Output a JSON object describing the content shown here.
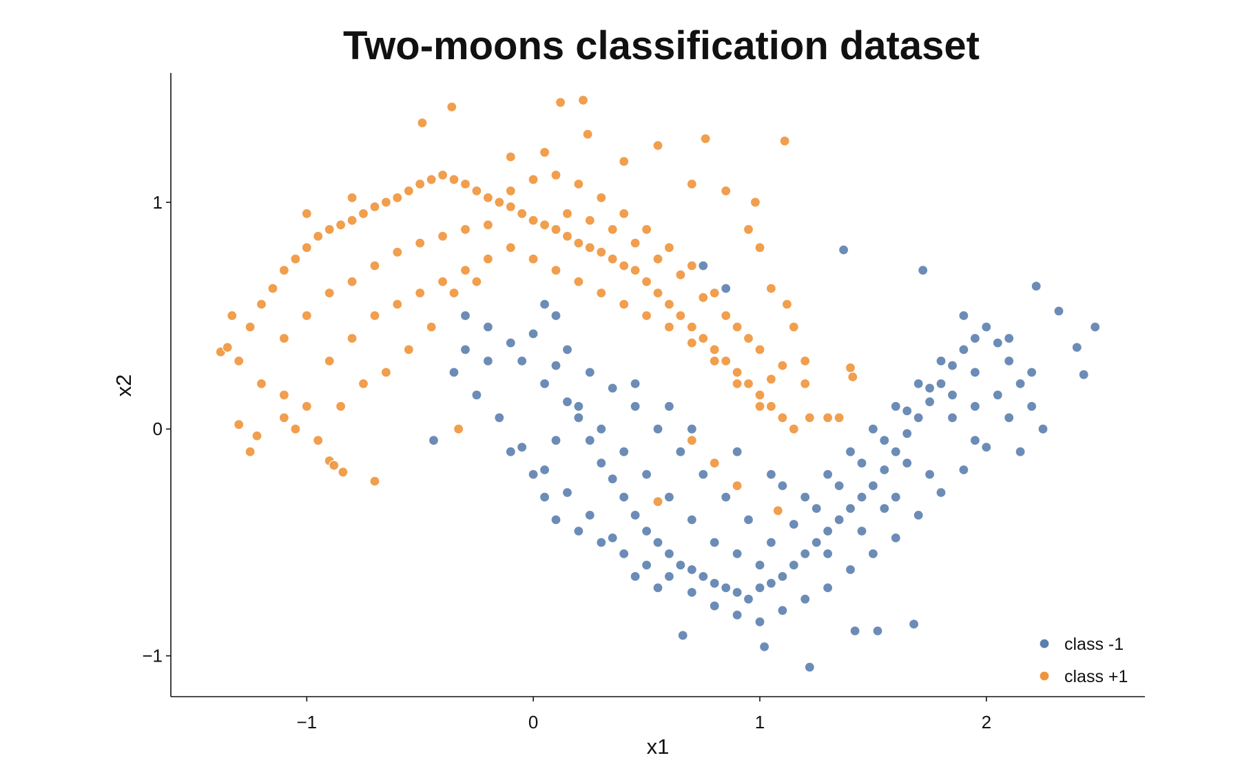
{
  "chart_data": {
    "type": "scatter",
    "title": "Two-moons classification dataset",
    "xlabel": "x1",
    "ylabel": "x2",
    "xlim": [
      -1.6,
      2.7
    ],
    "ylim": [
      -1.18,
      1.57
    ],
    "x_ticks": [
      -1,
      0,
      1,
      2
    ],
    "y_ticks": [
      -1,
      0,
      1
    ],
    "x_tick_labels": [
      "−1",
      "0",
      "1",
      "2"
    ],
    "y_tick_labels": [
      "−1",
      "0",
      "1"
    ],
    "grid": false,
    "legend_position": "bottom-right",
    "series": [
      {
        "name": "class -1",
        "color": "#5b7fae",
        "points": [
          [
            0.0,
            0.42
          ],
          [
            -0.1,
            0.38
          ],
          [
            -0.2,
            0.45
          ],
          [
            -0.3,
            0.5
          ],
          [
            -0.05,
            0.3
          ],
          [
            0.1,
            0.28
          ],
          [
            0.05,
            0.2
          ],
          [
            0.15,
            0.12
          ],
          [
            0.2,
            0.05
          ],
          [
            0.25,
            -0.05
          ],
          [
            0.3,
            -0.15
          ],
          [
            0.35,
            -0.22
          ],
          [
            0.4,
            -0.3
          ],
          [
            0.45,
            -0.38
          ],
          [
            0.5,
            -0.45
          ],
          [
            0.55,
            -0.5
          ],
          [
            0.6,
            -0.55
          ],
          [
            0.65,
            -0.6
          ],
          [
            0.7,
            -0.62
          ],
          [
            0.75,
            -0.65
          ],
          [
            0.8,
            -0.68
          ],
          [
            0.85,
            -0.7
          ],
          [
            0.9,
            -0.72
          ],
          [
            0.95,
            -0.75
          ],
          [
            1.0,
            -0.7
          ],
          [
            1.05,
            -0.68
          ],
          [
            1.1,
            -0.65
          ],
          [
            1.15,
            -0.6
          ],
          [
            1.2,
            -0.55
          ],
          [
            1.25,
            -0.5
          ],
          [
            1.3,
            -0.45
          ],
          [
            1.35,
            -0.4
          ],
          [
            1.4,
            -0.35
          ],
          [
            1.45,
            -0.3
          ],
          [
            1.5,
            -0.25
          ],
          [
            1.55,
            -0.18
          ],
          [
            1.6,
            -0.1
          ],
          [
            1.65,
            -0.02
          ],
          [
            1.7,
            0.05
          ],
          [
            1.75,
            0.12
          ],
          [
            1.8,
            0.2
          ],
          [
            1.85,
            0.28
          ],
          [
            1.9,
            0.35
          ],
          [
            1.95,
            0.4
          ],
          [
            2.0,
            0.45
          ],
          [
            2.05,
            0.38
          ],
          [
            2.1,
            0.3
          ],
          [
            2.15,
            0.2
          ],
          [
            2.2,
            0.1
          ],
          [
            2.25,
            0.0
          ],
          [
            -0.35,
            0.25
          ],
          [
            -0.25,
            0.15
          ],
          [
            -0.15,
            0.05
          ],
          [
            -0.1,
            -0.1
          ],
          [
            0.0,
            -0.2
          ],
          [
            0.05,
            -0.3
          ],
          [
            0.1,
            -0.4
          ],
          [
            0.2,
            -0.45
          ],
          [
            0.3,
            -0.5
          ],
          [
            0.4,
            -0.55
          ],
          [
            0.5,
            -0.6
          ],
          [
            0.6,
            -0.65
          ],
          [
            0.7,
            -0.72
          ],
          [
            0.8,
            -0.78
          ],
          [
            0.9,
            -0.82
          ],
          [
            1.0,
            -0.85
          ],
          [
            1.1,
            -0.8
          ],
          [
            1.2,
            -0.75
          ],
          [
            1.3,
            -0.7
          ],
          [
            1.4,
            -0.62
          ],
          [
            1.5,
            -0.55
          ],
          [
            1.6,
            -0.48
          ],
          [
            1.7,
            -0.38
          ],
          [
            1.8,
            -0.28
          ],
          [
            1.9,
            -0.18
          ],
          [
            2.0,
            -0.08
          ],
          [
            2.1,
            0.05
          ],
          [
            2.2,
            0.25
          ],
          [
            0.15,
            0.35
          ],
          [
            0.25,
            0.25
          ],
          [
            0.35,
            0.18
          ],
          [
            0.45,
            0.1
          ],
          [
            0.55,
            0.0
          ],
          [
            0.65,
            -0.1
          ],
          [
            0.75,
            -0.2
          ],
          [
            0.85,
            -0.3
          ],
          [
            0.95,
            -0.4
          ],
          [
            1.05,
            -0.5
          ],
          [
            1.15,
            -0.42
          ],
          [
            1.25,
            -0.35
          ],
          [
            1.35,
            -0.25
          ],
          [
            1.45,
            -0.15
          ],
          [
            1.55,
            -0.05
          ],
          [
            1.65,
            0.08
          ],
          [
            1.75,
            0.18
          ],
          [
            1.85,
            0.05
          ],
          [
            1.95,
            -0.05
          ],
          [
            0.6,
            -0.3
          ],
          [
            0.7,
            -0.4
          ],
          [
            0.8,
            -0.5
          ],
          [
            0.9,
            -0.55
          ],
          [
            1.0,
            -0.6
          ],
          [
            0.4,
            -0.1
          ],
          [
            0.3,
            0.0
          ],
          [
            0.2,
            0.1
          ],
          [
            0.5,
            -0.2
          ],
          [
            1.1,
            -0.25
          ],
          [
            1.2,
            -0.3
          ],
          [
            1.3,
            -0.2
          ],
          [
            1.4,
            -0.1
          ],
          [
            1.5,
            0.0
          ],
          [
            1.6,
            0.1
          ],
          [
            1.7,
            0.2
          ],
          [
            1.8,
            0.3
          ],
          [
            1.9,
            0.5
          ],
          [
            -0.2,
            0.3
          ],
          [
            -0.3,
            0.35
          ],
          [
            0.1,
            0.5
          ],
          [
            0.05,
            0.55
          ],
          [
            1.37,
            0.79
          ],
          [
            1.72,
            0.7
          ],
          [
            2.22,
            0.63
          ],
          [
            2.32,
            0.52
          ],
          [
            2.48,
            0.45
          ],
          [
            2.4,
            0.36
          ],
          [
            2.43,
            0.24
          ],
          [
            0.75,
            0.72
          ],
          [
            0.85,
            0.62
          ],
          [
            -0.44,
            -0.05
          ],
          [
            0.66,
            -0.91
          ],
          [
            1.02,
            -0.96
          ],
          [
            1.22,
            -1.05
          ],
          [
            1.42,
            -0.89
          ],
          [
            1.52,
            -0.89
          ],
          [
            1.68,
            -0.86
          ],
          [
            1.95,
            0.25
          ],
          [
            2.05,
            0.15
          ],
          [
            1.75,
            -0.2
          ],
          [
            1.6,
            -0.3
          ],
          [
            1.45,
            -0.45
          ],
          [
            1.3,
            -0.55
          ],
          [
            0.55,
            -0.7
          ],
          [
            0.45,
            -0.65
          ],
          [
            0.35,
            -0.48
          ],
          [
            0.25,
            -0.38
          ],
          [
            0.15,
            -0.28
          ],
          [
            0.05,
            -0.18
          ],
          [
            -0.05,
            -0.08
          ],
          [
            0.1,
            -0.05
          ],
          [
            0.45,
            0.2
          ],
          [
            0.6,
            0.1
          ],
          [
            0.7,
            0.0
          ],
          [
            0.9,
            -0.1
          ],
          [
            1.05,
            -0.2
          ],
          [
            2.1,
            0.4
          ],
          [
            2.15,
            -0.1
          ],
          [
            1.85,
            0.15
          ],
          [
            1.95,
            0.1
          ],
          [
            1.65,
            -0.15
          ],
          [
            1.55,
            -0.35
          ]
        ]
      },
      {
        "name": "class +1",
        "color": "#f0943a",
        "points": [
          [
            -1.3,
            0.3
          ],
          [
            -1.25,
            0.45
          ],
          [
            -1.2,
            0.55
          ],
          [
            -1.15,
            0.62
          ],
          [
            -1.1,
            0.7
          ],
          [
            -1.05,
            0.75
          ],
          [
            -1.0,
            0.8
          ],
          [
            -0.95,
            0.85
          ],
          [
            -0.9,
            0.88
          ],
          [
            -0.85,
            0.9
          ],
          [
            -0.8,
            0.92
          ],
          [
            -0.75,
            0.95
          ],
          [
            -0.7,
            0.98
          ],
          [
            -0.65,
            1.0
          ],
          [
            -0.6,
            1.02
          ],
          [
            -0.55,
            1.05
          ],
          [
            -0.5,
            1.08
          ],
          [
            -0.45,
            1.1
          ],
          [
            -0.4,
            1.12
          ],
          [
            -0.35,
            1.1
          ],
          [
            -0.3,
            1.08
          ],
          [
            -0.25,
            1.05
          ],
          [
            -0.2,
            1.02
          ],
          [
            -0.15,
            1.0
          ],
          [
            -0.1,
            0.98
          ],
          [
            -0.05,
            0.95
          ],
          [
            0.0,
            0.92
          ],
          [
            0.05,
            0.9
          ],
          [
            0.1,
            0.88
          ],
          [
            0.15,
            0.85
          ],
          [
            0.2,
            0.82
          ],
          [
            0.25,
            0.8
          ],
          [
            0.3,
            0.78
          ],
          [
            0.35,
            0.75
          ],
          [
            0.4,
            0.72
          ],
          [
            0.45,
            0.7
          ],
          [
            0.5,
            0.65
          ],
          [
            0.55,
            0.6
          ],
          [
            0.6,
            0.55
          ],
          [
            0.65,
            0.5
          ],
          [
            0.7,
            0.45
          ],
          [
            0.75,
            0.4
          ],
          [
            0.8,
            0.35
          ],
          [
            0.85,
            0.3
          ],
          [
            0.9,
            0.25
          ],
          [
            0.95,
            0.2
          ],
          [
            1.0,
            0.15
          ],
          [
            1.05,
            0.1
          ],
          [
            1.1,
            0.05
          ],
          [
            1.15,
            0.0
          ],
          [
            -1.1,
            0.4
          ],
          [
            -1.0,
            0.5
          ],
          [
            -0.9,
            0.6
          ],
          [
            -0.8,
            0.65
          ],
          [
            -0.7,
            0.72
          ],
          [
            -0.6,
            0.78
          ],
          [
            -0.5,
            0.82
          ],
          [
            -0.4,
            0.85
          ],
          [
            -0.3,
            0.88
          ],
          [
            -0.2,
            0.9
          ],
          [
            -0.1,
            1.05
          ],
          [
            0.0,
            1.1
          ],
          [
            0.1,
            1.12
          ],
          [
            0.2,
            1.08
          ],
          [
            0.3,
            1.02
          ],
          [
            0.4,
            0.95
          ],
          [
            0.5,
            0.88
          ],
          [
            0.6,
            0.8
          ],
          [
            0.7,
            0.72
          ],
          [
            0.8,
            0.6
          ],
          [
            0.9,
            0.45
          ],
          [
            1.0,
            0.35
          ],
          [
            1.1,
            0.28
          ],
          [
            -1.2,
            0.2
          ],
          [
            -1.1,
            0.15
          ],
          [
            -1.0,
            0.1
          ],
          [
            -0.9,
            0.3
          ],
          [
            -0.8,
            0.4
          ],
          [
            -0.7,
            0.5
          ],
          [
            -0.6,
            0.55
          ],
          [
            -0.5,
            0.6
          ],
          [
            -0.4,
            0.65
          ],
          [
            -0.3,
            0.7
          ],
          [
            -0.2,
            0.75
          ],
          [
            -0.1,
            0.8
          ],
          [
            0.0,
            0.75
          ],
          [
            0.1,
            0.7
          ],
          [
            0.2,
            0.65
          ],
          [
            0.3,
            0.6
          ],
          [
            0.4,
            0.55
          ],
          [
            0.5,
            0.5
          ],
          [
            0.6,
            0.45
          ],
          [
            0.7,
            0.38
          ],
          [
            0.8,
            0.3
          ],
          [
            0.9,
            0.2
          ],
          [
            1.0,
            0.1
          ],
          [
            -1.38,
            0.34
          ],
          [
            -1.35,
            0.36
          ],
          [
            -1.33,
            0.5
          ],
          [
            -1.3,
            0.02
          ],
          [
            -1.25,
            -0.1
          ],
          [
            -1.22,
            -0.03
          ],
          [
            -0.9,
            -0.14
          ],
          [
            -0.88,
            -0.16
          ],
          [
            -0.84,
            -0.19
          ],
          [
            -0.7,
            -0.23
          ],
          [
            -0.33,
            0.0
          ],
          [
            0.22,
            1.45
          ],
          [
            0.12,
            1.44
          ],
          [
            -0.36,
            1.42
          ],
          [
            -0.49,
            1.35
          ],
          [
            0.24,
            1.3
          ],
          [
            0.55,
            1.25
          ],
          [
            0.76,
            1.28
          ],
          [
            1.11,
            1.27
          ],
          [
            -0.1,
            1.2
          ],
          [
            0.05,
            1.22
          ],
          [
            0.4,
            1.18
          ],
          [
            0.7,
            1.08
          ],
          [
            0.85,
            1.05
          ],
          [
            -1.0,
            0.95
          ],
          [
            -0.8,
            1.02
          ],
          [
            0.98,
            1.0
          ],
          [
            0.95,
            0.88
          ],
          [
            1.0,
            0.8
          ],
          [
            1.05,
            0.62
          ],
          [
            1.12,
            0.55
          ],
          [
            1.15,
            0.45
          ],
          [
            1.2,
            0.3
          ],
          [
            1.2,
            0.2
          ],
          [
            1.22,
            0.05
          ],
          [
            1.3,
            0.05
          ],
          [
            1.35,
            0.05
          ],
          [
            1.4,
            0.27
          ],
          [
            1.41,
            0.23
          ],
          [
            1.08,
            -0.36
          ],
          [
            0.55,
            -0.32
          ],
          [
            0.9,
            -0.25
          ],
          [
            0.8,
            -0.15
          ],
          [
            0.7,
            -0.05
          ],
          [
            -1.1,
            0.05
          ],
          [
            -1.05,
            0.0
          ],
          [
            -0.95,
            -0.05
          ],
          [
            -0.85,
            0.1
          ],
          [
            -0.75,
            0.2
          ],
          [
            -0.65,
            0.25
          ],
          [
            -0.55,
            0.35
          ],
          [
            -0.45,
            0.45
          ],
          [
            -0.35,
            0.6
          ],
          [
            -0.25,
            0.65
          ],
          [
            0.15,
            0.95
          ],
          [
            0.25,
            0.92
          ],
          [
            0.35,
            0.88
          ],
          [
            0.45,
            0.82
          ],
          [
            0.55,
            0.75
          ],
          [
            0.65,
            0.68
          ],
          [
            0.75,
            0.58
          ],
          [
            0.85,
            0.5
          ],
          [
            0.95,
            0.4
          ],
          [
            1.05,
            0.22
          ]
        ]
      }
    ]
  }
}
